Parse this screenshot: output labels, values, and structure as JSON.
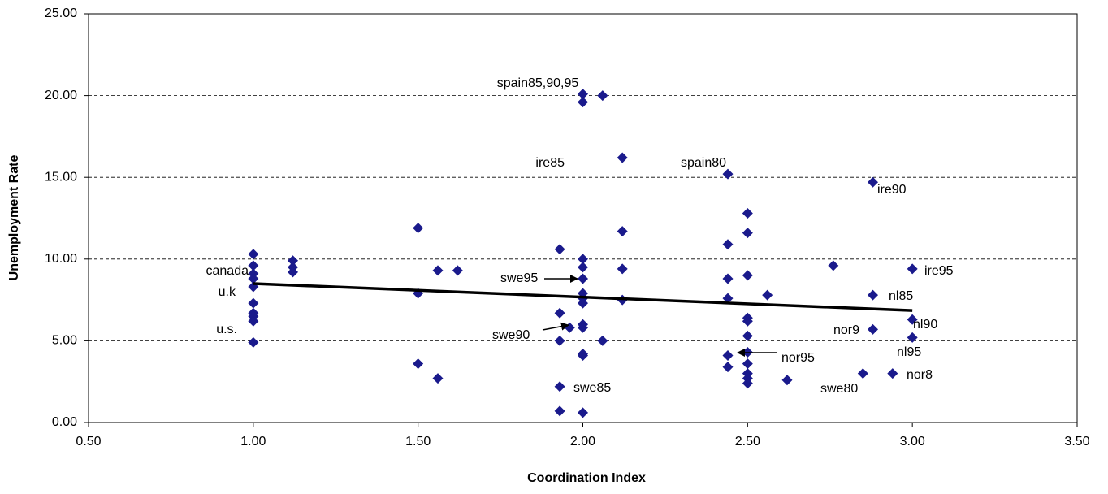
{
  "chart_data": {
    "type": "scatter",
    "x_label": "Coordination Index",
    "y_label": "Unemployment Rate",
    "series": [
      {
        "color": "#1a1a8c",
        "x": [
          1,
          1,
          1,
          1,
          1,
          1,
          1,
          1,
          1,
          1,
          1.12,
          1.12,
          1.12,
          1.5,
          1.5,
          1.5,
          1.56,
          1.56,
          1.62,
          1.93,
          1.93,
          1.93,
          1.93,
          1.93,
          1.96,
          2,
          2,
          2,
          2,
          2,
          2,
          2,
          2,
          2,
          2,
          2,
          2,
          2,
          2.06,
          2.06,
          2.12,
          2.12,
          2.12,
          2.12,
          2.44,
          2.44,
          2.44,
          2.44,
          2.44,
          2.44,
          2.5,
          2.5,
          2.5,
          2.5,
          2.5,
          2.5,
          2.5,
          2.5,
          2.5,
          2.5,
          2.5,
          2.56,
          2.62,
          2.76,
          2.85,
          2.88,
          2.88,
          2.88,
          2.94,
          3,
          3,
          3
        ],
        "values": [
          10.3,
          9.6,
          9.1,
          8.8,
          8.3,
          7.3,
          6.7,
          6.5,
          6.2,
          4.9,
          9.9,
          9.5,
          9.2,
          11.9,
          7.9,
          3.6,
          9.3,
          2.7,
          9.3,
          10.6,
          6.7,
          5.0,
          2.2,
          0.7,
          5.8,
          20.1,
          19.6,
          10.0,
          9.5,
          8.8,
          7.9,
          7.6,
          7.3,
          6.0,
          5.8,
          4.2,
          4.1,
          0.6,
          20.0,
          5.0,
          16.2,
          11.7,
          9.4,
          7.5,
          15.2,
          10.9,
          8.8,
          7.6,
          4.1,
          3.4,
          12.8,
          11.6,
          9.0,
          6.4,
          6.2,
          5.3,
          4.3,
          3.6,
          3.0,
          2.7,
          2.4,
          7.8,
          2.6,
          9.6,
          3.0,
          14.7,
          7.8,
          5.7,
          3.0,
          9.4,
          6.3,
          5.2
        ]
      }
    ],
    "trendline": {
      "x": [
        1,
        3
      ],
      "values": [
        8.5,
        6.85
      ],
      "color": "#000000"
    },
    "annotations": [
      "spain85,90,95",
      "ire85",
      "spain80",
      "ire90",
      "canada",
      "u.k",
      "u.s.",
      "swe95",
      "swe90",
      "swe85",
      "ire95",
      "nl85",
      "nor9",
      "nl90",
      "nl95",
      "nor95",
      "nor8",
      "swe80"
    ],
    "xlim": [
      0.5,
      3.5
    ],
    "xticks": [
      {
        "value": 0.5,
        "label": "0.50"
      },
      {
        "value": 1,
        "label": "1.00"
      },
      {
        "value": 1.5,
        "label": "1.50"
      },
      {
        "value": 2,
        "label": "2.00"
      },
      {
        "value": 2.5,
        "label": "2.50"
      },
      {
        "value": 3,
        "label": "3.00"
      },
      {
        "value": 3.5,
        "label": "3.50"
      }
    ],
    "ylim": [
      0,
      25
    ],
    "yticks": [
      {
        "value": 0,
        "label": "0.00"
      },
      {
        "value": 5,
        "label": "5.00"
      },
      {
        "value": 10,
        "label": "10.00"
      },
      {
        "value": 15,
        "label": "15.00"
      },
      {
        "value": 20,
        "label": "20.00"
      },
      {
        "value": 25,
        "label": "25.00"
      }
    ],
    "grid": true
  }
}
